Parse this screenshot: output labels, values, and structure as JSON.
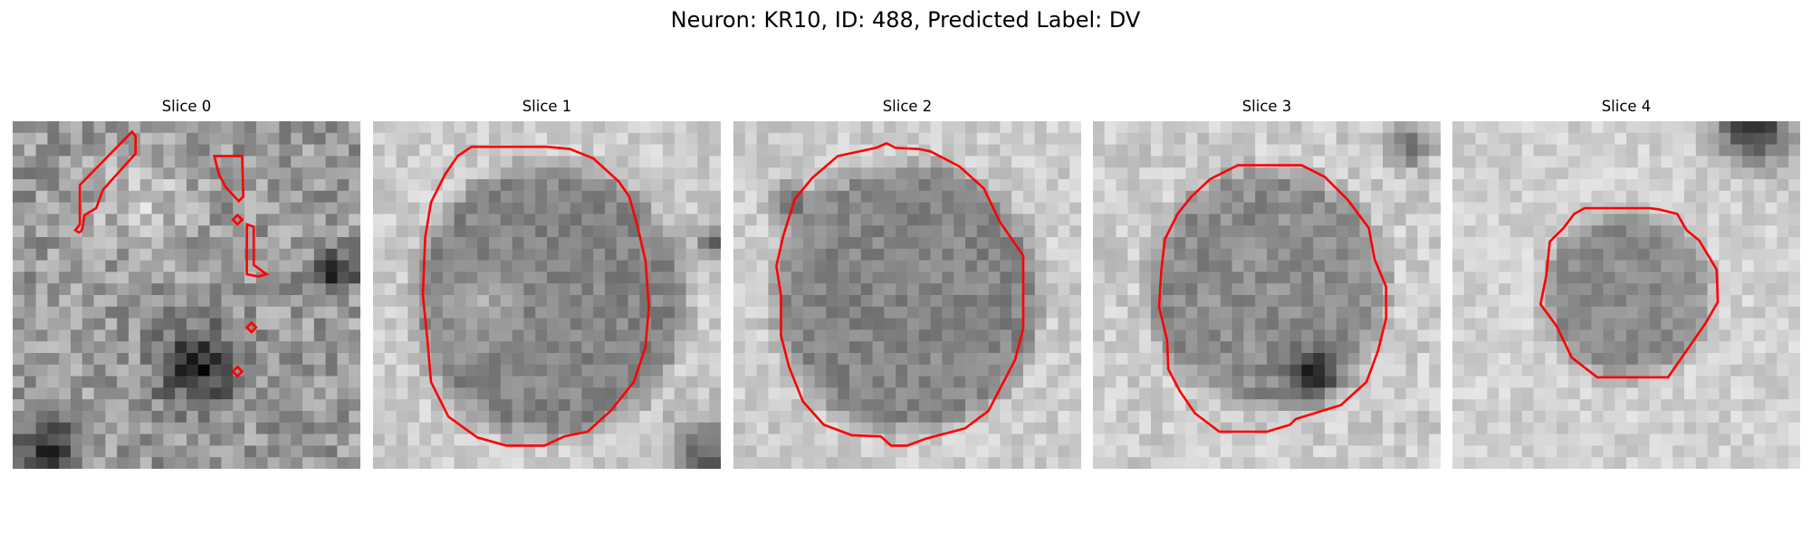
{
  "figure": {
    "title": "Neuron: KR10, ID: 488, Predicted Label: DV",
    "contour_color": "#ff0000"
  },
  "panels": [
    {
      "title": "Slice 0"
    },
    {
      "title": "Slice 1"
    },
    {
      "title": "Slice 2"
    },
    {
      "title": "Slice 3"
    },
    {
      "title": "Slice 4"
    }
  ]
}
